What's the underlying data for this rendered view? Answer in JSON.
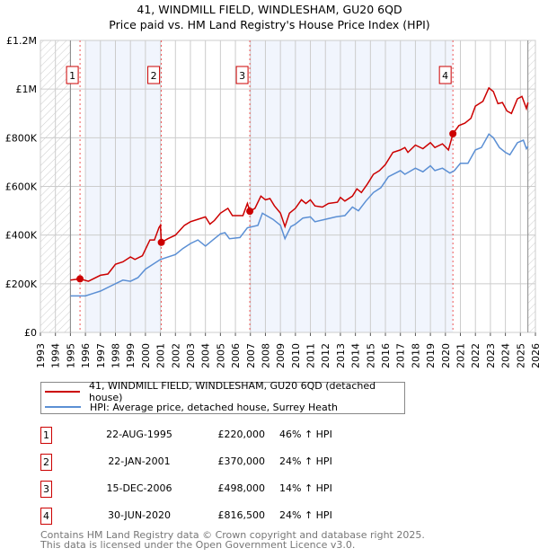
{
  "chart_data": {
    "type": "line",
    "title": "41, WINDMILL FIELD, WINDLESHAM, GU20 6QD",
    "subtitle": "Price paid vs. HM Land Registry's House Price Index (HPI)",
    "xlim": [
      1993,
      2026
    ],
    "ylim": [
      0,
      1200000
    ],
    "x_ticks": [
      "1993",
      "1994",
      "1995",
      "1996",
      "1997",
      "1998",
      "1999",
      "2000",
      "2001",
      "2002",
      "2003",
      "2004",
      "2005",
      "2006",
      "2007",
      "2008",
      "2009",
      "2010",
      "2011",
      "2012",
      "2013",
      "2014",
      "2015",
      "2016",
      "2017",
      "2018",
      "2019",
      "2020",
      "2021",
      "2022",
      "2023",
      "2024",
      "2025",
      "2026"
    ],
    "y_ticks": [
      {
        "v": 0,
        "label": "£0"
      },
      {
        "v": 200000,
        "label": "£200K"
      },
      {
        "v": 400000,
        "label": "£400K"
      },
      {
        "v": 600000,
        "label": "£600K"
      },
      {
        "v": 800000,
        "label": "£800K"
      },
      {
        "v": 1000000,
        "label": "£1M"
      },
      {
        "v": 1200000,
        "label": "£1.2M"
      }
    ],
    "grid": true,
    "shaded_ranges": [
      [
        1996,
        2001.06
      ],
      [
        2006.96,
        2020.5
      ]
    ],
    "hatched_ranges": [
      [
        1993,
        1995
      ],
      [
        2025.5,
        2026
      ]
    ],
    "series": [
      {
        "name": "41, WINDMILL FIELD, WINDLESHAM, GU20 6QD (detached house)",
        "color": "#cc0000",
        "points": [
          [
            1995.0,
            215
          ],
          [
            1995.64,
            220
          ],
          [
            1996.2,
            210
          ],
          [
            1997,
            235
          ],
          [
            1997.5,
            240
          ],
          [
            1998,
            280
          ],
          [
            1998.5,
            290
          ],
          [
            1999,
            310
          ],
          [
            1999.3,
            300
          ],
          [
            1999.8,
            315
          ],
          [
            2000.3,
            380
          ],
          [
            2000.6,
            380
          ],
          [
            2000.9,
            430
          ],
          [
            2001.0,
            440
          ],
          [
            2001.06,
            370
          ],
          [
            2001.5,
            385
          ],
          [
            2002,
            400
          ],
          [
            2002.6,
            440
          ],
          [
            2003,
            455
          ],
          [
            2003.5,
            465
          ],
          [
            2004,
            475
          ],
          [
            2004.3,
            445
          ],
          [
            2004.6,
            460
          ],
          [
            2005,
            490
          ],
          [
            2005.5,
            510
          ],
          [
            2005.8,
            480
          ],
          [
            2006.5,
            480
          ],
          [
            2006.8,
            530
          ],
          [
            2006.96,
            498
          ],
          [
            2007.3,
            510
          ],
          [
            2007.7,
            560
          ],
          [
            2008,
            545
          ],
          [
            2008.3,
            550
          ],
          [
            2008.6,
            520
          ],
          [
            2009.0,
            490
          ],
          [
            2009.3,
            435
          ],
          [
            2009.6,
            490
          ],
          [
            2010,
            510
          ],
          [
            2010.4,
            545
          ],
          [
            2010.7,
            530
          ],
          [
            2011,
            545
          ],
          [
            2011.3,
            520
          ],
          [
            2011.8,
            515
          ],
          [
            2012.2,
            530
          ],
          [
            2012.8,
            535
          ],
          [
            2013,
            555
          ],
          [
            2013.3,
            540
          ],
          [
            2013.8,
            560
          ],
          [
            2014.1,
            590
          ],
          [
            2014.4,
            575
          ],
          [
            2014.8,
            610
          ],
          [
            2015.2,
            650
          ],
          [
            2015.6,
            665
          ],
          [
            2016,
            690
          ],
          [
            2016.5,
            740
          ],
          [
            2017,
            750
          ],
          [
            2017.3,
            760
          ],
          [
            2017.5,
            740
          ],
          [
            2018,
            770
          ],
          [
            2018.5,
            755
          ],
          [
            2019,
            780
          ],
          [
            2019.3,
            760
          ],
          [
            2019.8,
            775
          ],
          [
            2020.2,
            750
          ],
          [
            2020.5,
            816.5
          ],
          [
            2020.9,
            850
          ],
          [
            2021.3,
            860
          ],
          [
            2021.7,
            880
          ],
          [
            2022,
            930
          ],
          [
            2022.5,
            950
          ],
          [
            2022.9,
            1005
          ],
          [
            2023.2,
            990
          ],
          [
            2023.5,
            940
          ],
          [
            2023.8,
            945
          ],
          [
            2024.1,
            910
          ],
          [
            2024.4,
            900
          ],
          [
            2024.8,
            960
          ],
          [
            2025.1,
            970
          ],
          [
            2025.4,
            920
          ],
          [
            2025.5,
            945
          ]
        ]
      },
      {
        "name": "HPI: Average price, detached house, Surrey Heath",
        "color": "#5b8fd4",
        "points": [
          [
            1995,
            150
          ],
          [
            1996,
            150
          ],
          [
            1996.5,
            160
          ],
          [
            1997,
            170
          ],
          [
            1998,
            200
          ],
          [
            1998.5,
            215
          ],
          [
            1999,
            210
          ],
          [
            1999.5,
            225
          ],
          [
            2000,
            260
          ],
          [
            2001,
            300
          ],
          [
            2002,
            320
          ],
          [
            2002.5,
            345
          ],
          [
            2003,
            365
          ],
          [
            2003.5,
            380
          ],
          [
            2004,
            355
          ],
          [
            2004.5,
            380
          ],
          [
            2005,
            405
          ],
          [
            2005.3,
            410
          ],
          [
            2005.6,
            385
          ],
          [
            2006.3,
            390
          ],
          [
            2006.8,
            430
          ],
          [
            2007.5,
            440
          ],
          [
            2007.8,
            490
          ],
          [
            2008.5,
            465
          ],
          [
            2009,
            440
          ],
          [
            2009.3,
            385
          ],
          [
            2009.7,
            435
          ],
          [
            2010,
            445
          ],
          [
            2010.5,
            470
          ],
          [
            2011,
            475
          ],
          [
            2011.3,
            455
          ],
          [
            2012,
            465
          ],
          [
            2012.7,
            475
          ],
          [
            2013.3,
            480
          ],
          [
            2013.8,
            515
          ],
          [
            2014.2,
            500
          ],
          [
            2014.7,
            540
          ],
          [
            2015.2,
            575
          ],
          [
            2015.7,
            595
          ],
          [
            2016.2,
            640
          ],
          [
            2017,
            665
          ],
          [
            2017.3,
            650
          ],
          [
            2018,
            675
          ],
          [
            2018.5,
            660
          ],
          [
            2019,
            685
          ],
          [
            2019.3,
            665
          ],
          [
            2019.8,
            675
          ],
          [
            2020.3,
            655
          ],
          [
            2020.6,
            665
          ],
          [
            2021,
            695
          ],
          [
            2021.5,
            695
          ],
          [
            2022,
            750
          ],
          [
            2022.4,
            760
          ],
          [
            2022.9,
            815
          ],
          [
            2023.2,
            800
          ],
          [
            2023.6,
            760
          ],
          [
            2024,
            740
          ],
          [
            2024.3,
            730
          ],
          [
            2024.8,
            780
          ],
          [
            2025.2,
            790
          ],
          [
            2025.4,
            755
          ],
          [
            2025.5,
            765
          ]
        ]
      }
    ],
    "y_point_units": "thousands GBP",
    "sales": [
      {
        "id": "1",
        "x": 1995.64,
        "value": 220000,
        "date": "22-AUG-1995",
        "price": "£220,000",
        "hpi": "46% ↑ HPI"
      },
      {
        "id": "2",
        "x": 2001.06,
        "value": 370000,
        "date": "22-JAN-2001",
        "price": "£370,000",
        "hpi": "24% ↑ HPI"
      },
      {
        "id": "3",
        "x": 2006.96,
        "value": 498000,
        "date": "15-DEC-2006",
        "price": "£498,000",
        "hpi": "14% ↑ HPI"
      },
      {
        "id": "4",
        "x": 2020.5,
        "value": 816500,
        "date": "30-JUN-2020",
        "price": "£816,500",
        "hpi": "24% ↑ HPI"
      }
    ],
    "legend_placement": "below"
  },
  "footer": {
    "line1": "Contains HM Land Registry data © Crown copyright and database right 2025.",
    "line2": "This data is licensed under the Open Government Licence v3.0."
  }
}
